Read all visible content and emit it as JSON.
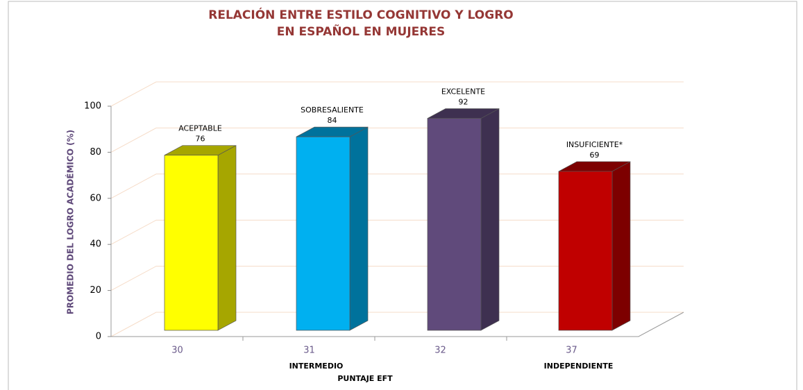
{
  "chart_data": {
    "type": "bar3d",
    "title": [
      "RELACIÓN ENTRE ESTILO COGNITIVO Y LOGRO",
      "EN ESPAÑOL EN MUJERES"
    ],
    "x_label": "PUNTAJE EFT",
    "y_label": "PROMEDIO DEL LOGRO ACADÉMICO (%)",
    "categories": [
      "30",
      "31",
      "32",
      "37"
    ],
    "group_labels": [
      null,
      "INTERMEDIO",
      null,
      "INDEPENDIENTE"
    ],
    "point_labels": [
      "ACEPTABLE",
      "SOBRESALIENTE",
      "EXCELENTE",
      "INSUFICIENTE*"
    ],
    "values": [
      76,
      84,
      92,
      69
    ],
    "colors": [
      "#ffff00",
      "#00b0f0",
      "#604a7b",
      "#c00000"
    ],
    "side_colors": [
      "#a6a600",
      "#00729c",
      "#3e3050",
      "#7d0000"
    ],
    "ylim": [
      0,
      100
    ],
    "yticks": [
      0,
      20,
      40,
      60,
      80,
      100
    ],
    "grid": true
  }
}
